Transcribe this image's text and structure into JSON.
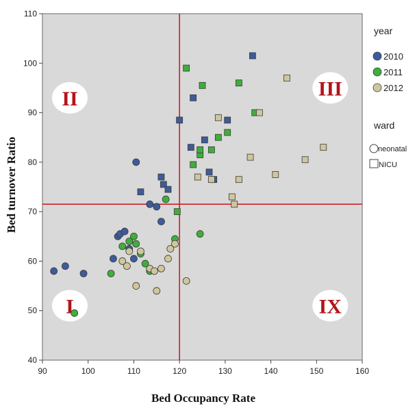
{
  "chart_data": {
    "type": "scatter",
    "xlabel": "Bed Occupancy Rate",
    "ylabel": "Bed turnover Ratio",
    "xlim": [
      90,
      160
    ],
    "ylim": [
      40,
      110
    ],
    "xticks": [
      90,
      100,
      110,
      120,
      130,
      140,
      150,
      160
    ],
    "yticks": [
      40,
      50,
      60,
      70,
      80,
      90,
      100,
      110
    ],
    "grid": false,
    "legend_position": "right",
    "reference_lines": {
      "x": 120,
      "y": 71.5,
      "color": "#d0101c"
    },
    "quadrant_labels": [
      {
        "label": "II",
        "x": 96,
        "y": 93
      },
      {
        "label": "III",
        "x": 153,
        "y": 95
      },
      {
        "label": "I",
        "x": 96,
        "y": 51
      },
      {
        "label": "IX",
        "x": 153,
        "y": 51
      }
    ],
    "legend_year_title": "year",
    "legend_ward_title": "ward",
    "plot_background": "#d9d9d9",
    "series": [
      {
        "name": "2010",
        "color": "#3e5b9a",
        "neonatal": [
          [
            92.5,
            58
          ],
          [
            95,
            59
          ],
          [
            99,
            57.5
          ],
          [
            105.5,
            60.5
          ],
          [
            106.5,
            65
          ],
          [
            107,
            65.5
          ],
          [
            108,
            66
          ],
          [
            109,
            62.5
          ],
          [
            110,
            60.5
          ],
          [
            110.5,
            80
          ],
          [
            113.5,
            71.5
          ],
          [
            115,
            71
          ],
          [
            116,
            68
          ]
        ],
        "NICU": [
          [
            111.5,
            74
          ],
          [
            116,
            77
          ],
          [
            116.5,
            75.5
          ],
          [
            117.5,
            74.5
          ],
          [
            120,
            88.5
          ],
          [
            122.5,
            83
          ],
          [
            123,
            93
          ],
          [
            125.5,
            84.5
          ],
          [
            126.5,
            78
          ],
          [
            127.5,
            76.5
          ],
          [
            130.5,
            88.5
          ],
          [
            136,
            101.5
          ]
        ]
      },
      {
        "name": "2011",
        "color": "#3fae3a",
        "neonatal": [
          [
            97,
            49.5
          ],
          [
            105,
            57.5
          ],
          [
            107.5,
            63
          ],
          [
            109,
            64
          ],
          [
            110,
            65
          ],
          [
            110.5,
            63.5
          ],
          [
            111.5,
            61.5
          ],
          [
            112.5,
            59.5
          ],
          [
            113.5,
            58
          ],
          [
            117,
            72.5
          ],
          [
            119,
            64.5
          ],
          [
            124.5,
            65.5
          ]
        ],
        "NICU": [
          [
            119.5,
            70
          ],
          [
            121.5,
            99
          ],
          [
            123,
            79.5
          ],
          [
            124.5,
            81.5
          ],
          [
            124.5,
            82.5
          ],
          [
            125,
            95.5
          ],
          [
            127,
            82.5
          ],
          [
            128.5,
            85
          ],
          [
            130.5,
            86
          ],
          [
            133,
            96
          ],
          [
            136.5,
            90
          ]
        ]
      },
      {
        "name": "2012",
        "color": "#cfc69c",
        "neonatal": [
          [
            107.5,
            60
          ],
          [
            108.5,
            59
          ],
          [
            109,
            62
          ],
          [
            110.5,
            55
          ],
          [
            111.5,
            62
          ],
          [
            113.5,
            58.5
          ],
          [
            114.5,
            58
          ],
          [
            115,
            54
          ],
          [
            116,
            58.5
          ],
          [
            117.5,
            60.5
          ],
          [
            118,
            62.5
          ],
          [
            119,
            63.5
          ],
          [
            121.5,
            56
          ]
        ],
        "NICU": [
          [
            124,
            77
          ],
          [
            127,
            76.5
          ],
          [
            128.5,
            89
          ],
          [
            131.5,
            73
          ],
          [
            132,
            71.5
          ],
          [
            133,
            76.5
          ],
          [
            135.5,
            81
          ],
          [
            137.5,
            90
          ],
          [
            141,
            77.5
          ],
          [
            143.5,
            97
          ],
          [
            147.5,
            80.5
          ],
          [
            151.5,
            83
          ]
        ]
      }
    ]
  },
  "legend": {
    "year_title": "year",
    "ward_title": "ward",
    "ward_items": [
      "neonatal",
      "NICU"
    ]
  }
}
